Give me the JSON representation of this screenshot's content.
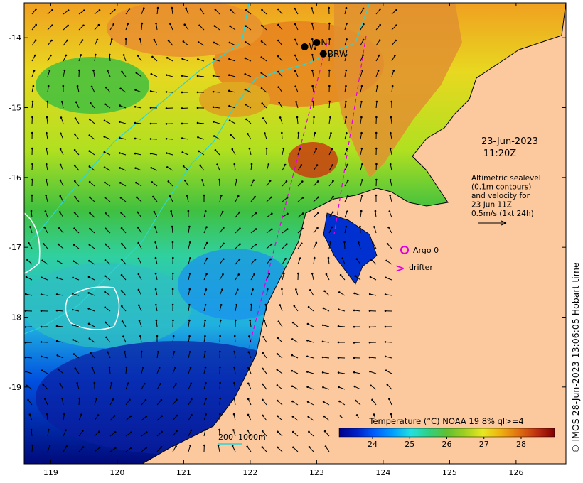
{
  "map": {
    "xaxis": {
      "ticks": [
        "119",
        "120",
        "121",
        "122",
        "123",
        "124",
        "125",
        "126"
      ],
      "lon": [
        119,
        120,
        121,
        122,
        123,
        124,
        125,
        126
      ],
      "range": [
        118.6,
        126.75
      ]
    },
    "yaxis": {
      "ticks": [
        "-14",
        "-15",
        "-16",
        "-17",
        "-18",
        "-19"
      ],
      "lat": [
        -14,
        -15,
        -16,
        -17,
        -18,
        -19
      ],
      "range": [
        -20.1,
        -13.5
      ]
    },
    "datetime": {
      "date": "23-Jun-2023",
      "time": "11:20Z"
    },
    "altimetry_note": [
      "Altimetric sealevel",
      "(0.1m contours)",
      "and velocity for",
      "23 Jun 11Z",
      "0.5m/s (1kt 24h)"
    ],
    "legend": {
      "argo": "Argo 0",
      "drifter": "drifter",
      "argo_color": "#e000e0",
      "drifter_color": "#e000e0"
    },
    "stations": [
      {
        "label": "W",
        "lon": 122.82,
        "lat": -14.13
      },
      {
        "label": "N",
        "lon": 123.0,
        "lat": -14.07
      },
      {
        "label": "BRW",
        "lon": 123.1,
        "lat": -14.23
      }
    ],
    "bathymetry_legend": "200  1000m",
    "colorbar": {
      "title": "Temperature (°C) NOAA 19 8% ql>=4",
      "ticks": [
        "24",
        "25",
        "26",
        "27",
        "28"
      ],
      "values": [
        24,
        25,
        26,
        27,
        28
      ],
      "range": [
        23.1,
        28.9
      ],
      "colors": [
        "#00008a",
        "#0020c8",
        "#0060ff",
        "#00a0ff",
        "#20e0e0",
        "#30d080",
        "#60c030",
        "#a0d020",
        "#e8e820",
        "#f0b010",
        "#e07010",
        "#c03010",
        "#800000"
      ]
    },
    "credit": "© IMOS 28-Jun-2023 13:06:05 Hobart time",
    "colors": {
      "land": "#fcc99e",
      "bathy": "#2bd6d6",
      "contour": "#ffffff"
    }
  }
}
